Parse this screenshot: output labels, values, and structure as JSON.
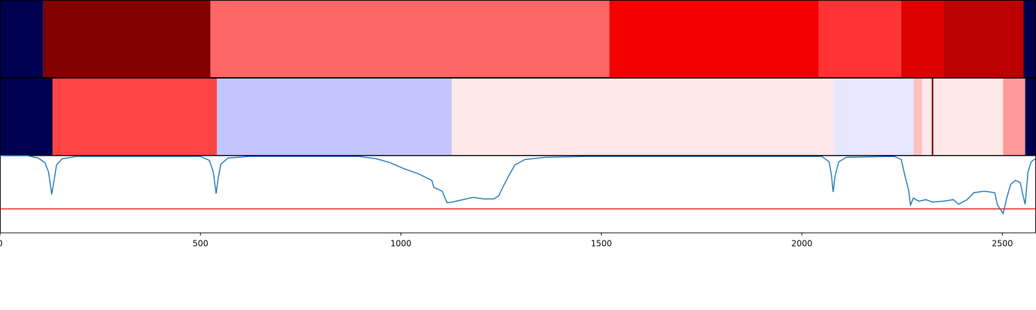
{
  "chart_data": {
    "type": "strips-line",
    "xlim": [
      0,
      2584
    ],
    "xticks": [
      0,
      500,
      1000,
      1500,
      2000,
      2500
    ],
    "strips": [
      {
        "edges": [
          0,
          108,
          525,
          1520,
          2042,
          2248,
          2354,
          2553,
          2584
        ],
        "colors": [
          "#000050",
          "#800000",
          "#ff6666",
          "#f50000",
          "#ff3333",
          "#dd0000",
          "#bb0000",
          "#000050"
        ]
      },
      {
        "edges": [
          0,
          131,
          541,
          1127,
          2080,
          2279,
          2300,
          2324,
          2328,
          2502,
          2557,
          2584
        ],
        "colors": [
          "#000050",
          "#ff4444",
          "#c4c4ff",
          "#ffe8e8",
          "#e6e6ff",
          "#ffc0c0",
          "#ffe8e8",
          "#800000",
          "#ffe8e8",
          "#ff9999",
          "#000050"
        ]
      }
    ],
    "ylim": [
      0,
      1
    ],
    "x": [
      0,
      69,
      95,
      112,
      121,
      126,
      129,
      134,
      141,
      155,
      190,
      500,
      522,
      532,
      539,
      544,
      551,
      569,
      620,
      896,
      939,
      973,
      1008,
      1042,
      1077,
      1082,
      1103,
      1115,
      1129,
      1154,
      1180,
      1206,
      1232,
      1244,
      1254,
      1266,
      1284,
      1309,
      1361,
      1464,
      2050,
      2068,
      2074,
      2078,
      2083,
      2092,
      2111,
      2231,
      2248,
      2257,
      2266,
      2271,
      2278,
      2292,
      2309,
      2326,
      2352,
      2378,
      2391,
      2412,
      2429,
      2455,
      2481,
      2488,
      2502,
      2512,
      2521,
      2533,
      2545,
      2550,
      2557,
      2564,
      2572,
      2584
    ],
    "series": [
      {
        "color": "#1f77b4",
        "values": [
          1.0,
          1.0,
          0.97,
          0.91,
          0.79,
          0.61,
          0.5,
          0.65,
          0.88,
          0.96,
          0.99,
          0.99,
          0.94,
          0.79,
          0.51,
          0.7,
          0.89,
          0.97,
          0.99,
          0.99,
          0.96,
          0.91,
          0.83,
          0.77,
          0.68,
          0.59,
          0.54,
          0.39,
          0.4,
          0.43,
          0.46,
          0.44,
          0.44,
          0.48,
          0.59,
          0.71,
          0.88,
          0.95,
          0.98,
          0.99,
          0.99,
          0.92,
          0.74,
          0.53,
          0.74,
          0.92,
          0.98,
          0.99,
          0.95,
          0.74,
          0.56,
          0.36,
          0.45,
          0.41,
          0.43,
          0.4,
          0.41,
          0.43,
          0.37,
          0.43,
          0.52,
          0.54,
          0.52,
          0.36,
          0.25,
          0.47,
          0.63,
          0.68,
          0.65,
          0.52,
          0.37,
          0.79,
          0.92,
          0.97
        ]
      }
    ],
    "hline": {
      "value": 0.31,
      "color": "#e41a1c"
    }
  }
}
